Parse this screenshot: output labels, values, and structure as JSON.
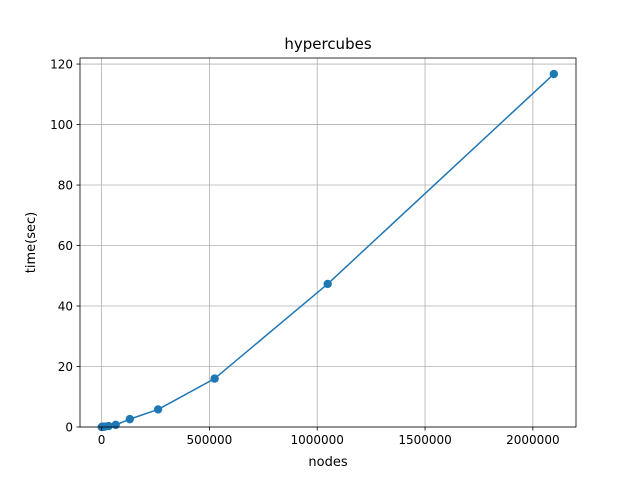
{
  "chart_data": {
    "type": "line",
    "title": "hypercubes",
    "xlabel": "nodes",
    "ylabel": "time(sec)",
    "xlim": [
      -100000,
      2200000
    ],
    "ylim": [
      0,
      122
    ],
    "xticks": [
      0,
      500000,
      1000000,
      1500000,
      2000000
    ],
    "xtick_labels": [
      "0",
      "500000",
      "1000000",
      "1500000",
      "2000000"
    ],
    "yticks": [
      0,
      20,
      40,
      60,
      80,
      100,
      120
    ],
    "ytick_labels": [
      "0",
      "20",
      "40",
      "60",
      "80",
      "100",
      "120"
    ],
    "grid": true,
    "markers": "circle",
    "series": [
      {
        "color": "#1f77b4",
        "x": [
          1024,
          2048,
          4096,
          8192,
          16384,
          32768,
          65536,
          131072,
          262144,
          524288,
          1048576,
          2097152
        ],
        "y": [
          0.01,
          0.02,
          0.04,
          0.08,
          0.15,
          0.3,
          0.7,
          2.6,
          5.8,
          16.0,
          47.3,
          116.7
        ]
      }
    ]
  }
}
